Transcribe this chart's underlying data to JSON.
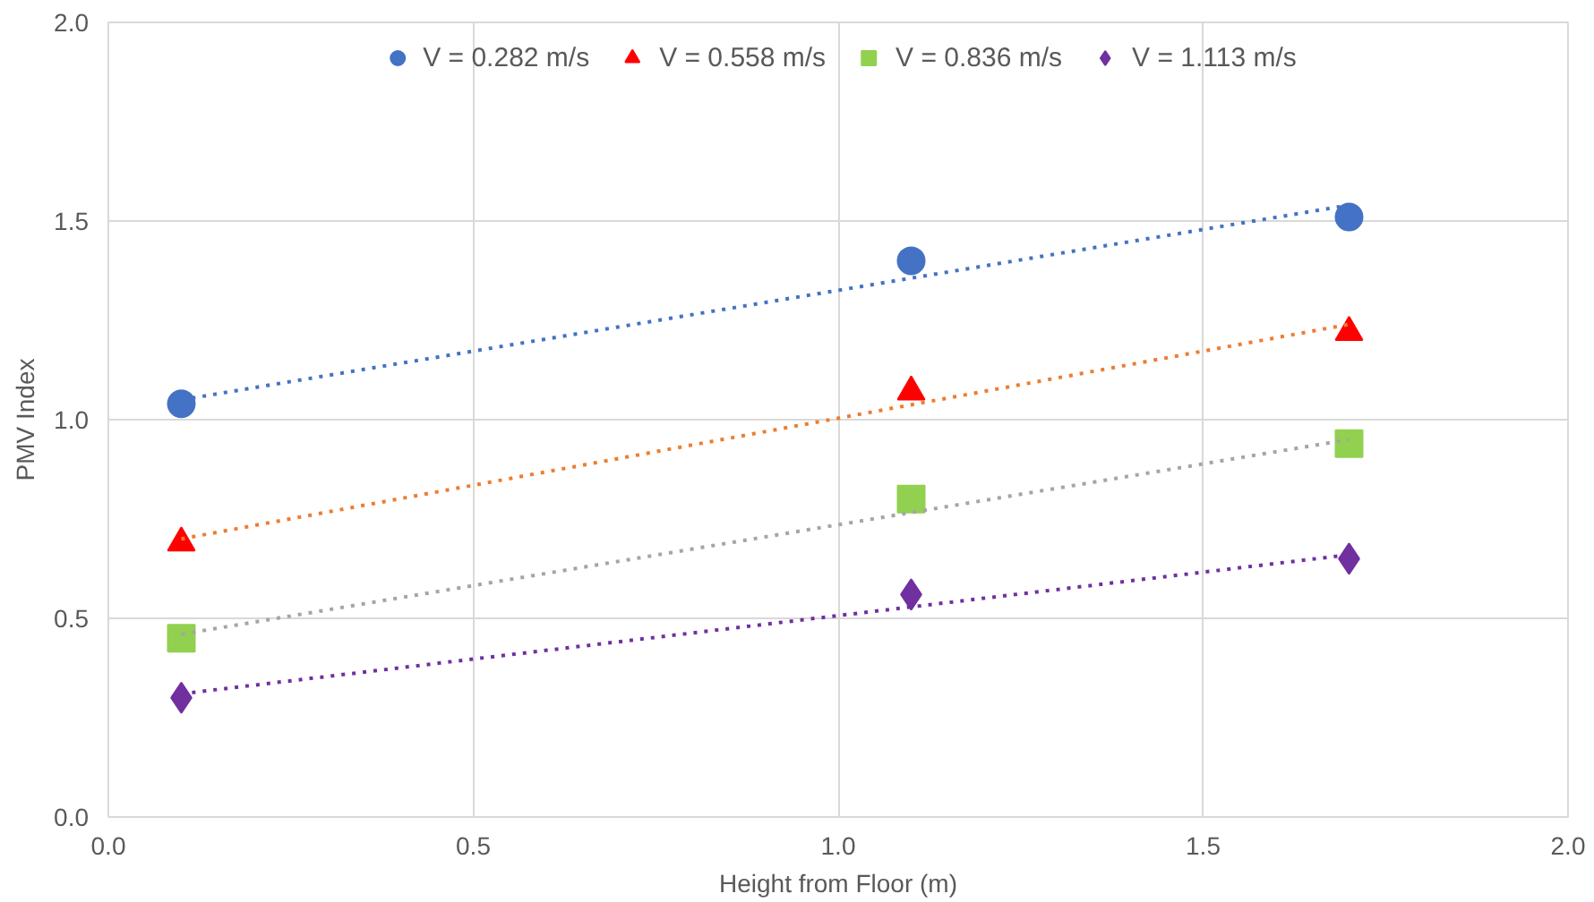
{
  "chart_data": {
    "type": "scatter",
    "xlabel": "Height from Floor (m)",
    "ylabel": "PMV Index",
    "xlim": [
      0,
      2
    ],
    "ylim": [
      0,
      2
    ],
    "xticks": [
      {
        "value": 0,
        "label": "0.0"
      },
      {
        "value": 0.5,
        "label": "0.5"
      },
      {
        "value": 1,
        "label": "1.0"
      },
      {
        "value": 1.5,
        "label": "1.5"
      },
      {
        "value": 2,
        "label": "2.0"
      }
    ],
    "yticks": [
      {
        "value": 0,
        "label": "0.0"
      },
      {
        "value": 0.5,
        "label": "0.5"
      },
      {
        "value": 1,
        "label": "1.0"
      },
      {
        "value": 1.5,
        "label": "1.5"
      },
      {
        "value": 2,
        "label": "2.0"
      }
    ],
    "grid": true,
    "legend": "top",
    "series": [
      {
        "name": "V = 0.282 m/s",
        "color": "#4472c4",
        "marker": "circle",
        "x": [
          0.1,
          1.1,
          1.7
        ],
        "values": [
          1.04,
          1.4,
          1.51
        ]
      },
      {
        "name": "V = 0.558 m/s",
        "color": "#ff0000",
        "marker": "triangle",
        "x": [
          0.1,
          1.1,
          1.7
        ],
        "values": [
          0.69,
          1.07,
          1.22
        ]
      },
      {
        "name": "V = 0.836 m/s",
        "color": "#92d050",
        "marker": "square",
        "x": [
          0.1,
          1.1,
          1.7
        ],
        "values": [
          0.45,
          0.8,
          0.94
        ]
      },
      {
        "name": "V = 1.113 m/s",
        "color": "#7030a0",
        "marker": "diamond",
        "x": [
          0.1,
          1.1,
          1.7
        ],
        "values": [
          0.3,
          0.56,
          0.65
        ]
      },
      {
        "type": "line",
        "color": "#4472c4",
        "line_style": "dotted",
        "marker": "none",
        "x": [
          0.1,
          1.7
        ],
        "values": [
          1.05,
          1.54
        ]
      },
      {
        "type": "line",
        "color": "#ed7d31",
        "line_style": "dotted",
        "marker": "none",
        "x": [
          0.1,
          1.7
        ],
        "values": [
          0.7,
          1.24
        ]
      },
      {
        "type": "line",
        "color": "#a5a5a5",
        "line_style": "dotted",
        "marker": "none",
        "x": [
          0.1,
          1.7
        ],
        "values": [
          0.46,
          0.95
        ]
      },
      {
        "type": "line",
        "color": "#7030a0",
        "line_style": "dotted",
        "marker": "none",
        "x": [
          0.1,
          1.7
        ],
        "values": [
          0.31,
          0.66
        ]
      }
    ]
  }
}
